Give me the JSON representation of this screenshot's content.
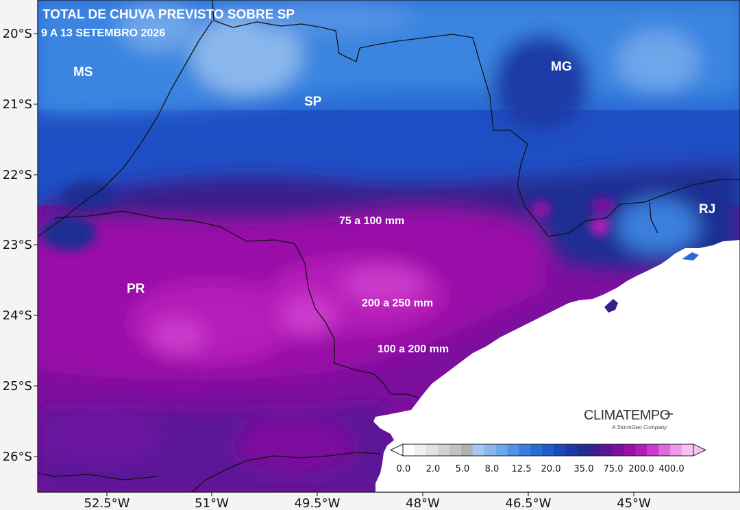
{
  "title": {
    "line1": "TOTAL DE CHUVA PREVISTO SOBRE SP",
    "line2": "9 A 13 SETEMBRO 2026"
  },
  "states": [
    "MS",
    "SP",
    "MG",
    "RJ",
    "PR"
  ],
  "regions": [
    "75 a 100 mm",
    "200 a 250 mm",
    "100 a 200 mm"
  ],
  "lat_ticks": [
    "20°S",
    "21°S",
    "22°S",
    "23°S",
    "24°S",
    "25°S",
    "26°S"
  ],
  "lon_ticks": [
    "52.5°W",
    "51°W",
    "49.5°W",
    "48°W",
    "46.5°W",
    "45°W"
  ],
  "colorbar": {
    "labels": [
      "0.0",
      "2.0",
      "5.0",
      "8.0",
      "12.5",
      "20.0",
      "35.0",
      "75.0",
      "200.0",
      "400.0"
    ],
    "colors": [
      "#ffffff",
      "#f0f0f0",
      "#e2e2e2",
      "#d2d2d2",
      "#c2c2c2",
      "#b0b0b0",
      "#a6c8ee",
      "#8ab7ec",
      "#6ea6ea",
      "#5292e4",
      "#3a7fde",
      "#2a6cd6",
      "#1f5acb",
      "#1a49bb",
      "#1a3aa6",
      "#1f2e92",
      "#3a1f8a",
      "#5a1596",
      "#7d0f9e",
      "#9a11a8",
      "#b51bb8",
      "#cc3bcc",
      "#df6ade",
      "#ee99ec",
      "#f6c2f4"
    ]
  },
  "brand": {
    "name": "CLIMATEMPO",
    "tagline": "A StormGeo Company"
  }
}
